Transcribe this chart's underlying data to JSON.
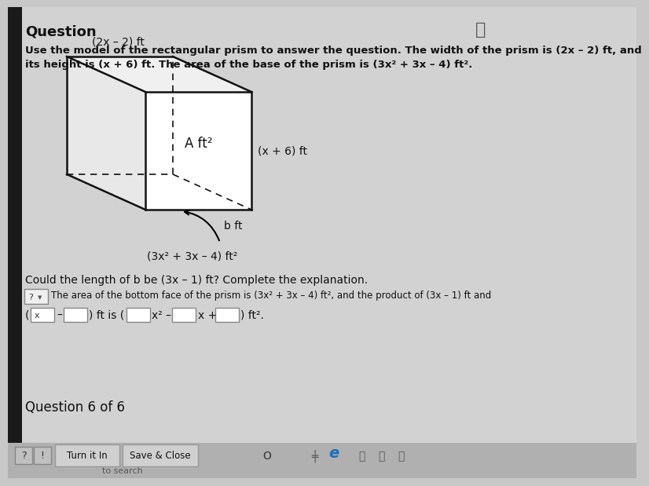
{
  "bg_color": "#c8c8c8",
  "content_bg": "#d8d8d8",
  "title_text": "Question",
  "body_line1": "Use the model of the rectangular prism to answer the question. The width of the prism is (2x – 2) ft, and",
  "body_line2": "its height is (x + 6) ft. The area of the base of the prism is (3x² + 3x – 4) ft².",
  "question_text": "Could the length of b be (3x – 1) ft? Complete the explanation.",
  "answer_line1": "The area of the bottom face of the prism is (3x² + 3x – 4) ft², and the product of (3x – 1) ft and",
  "bottom_label": "Question 6 of 6",
  "label_top": "(2x – 2) ft",
  "label_right": "(x + 6) ft",
  "label_front_face": "A ft²",
  "label_b": "b ft",
  "label_base": "(3x² + 3x – 4) ft²",
  "prism_color": "#111111",
  "front_face_color": "#ffffff",
  "top_face_color": "#f0f0f0",
  "right_face_color": "#e8e8e8",
  "btn_face": "#d0d0d0",
  "btn_edge": "#aaaaaa"
}
